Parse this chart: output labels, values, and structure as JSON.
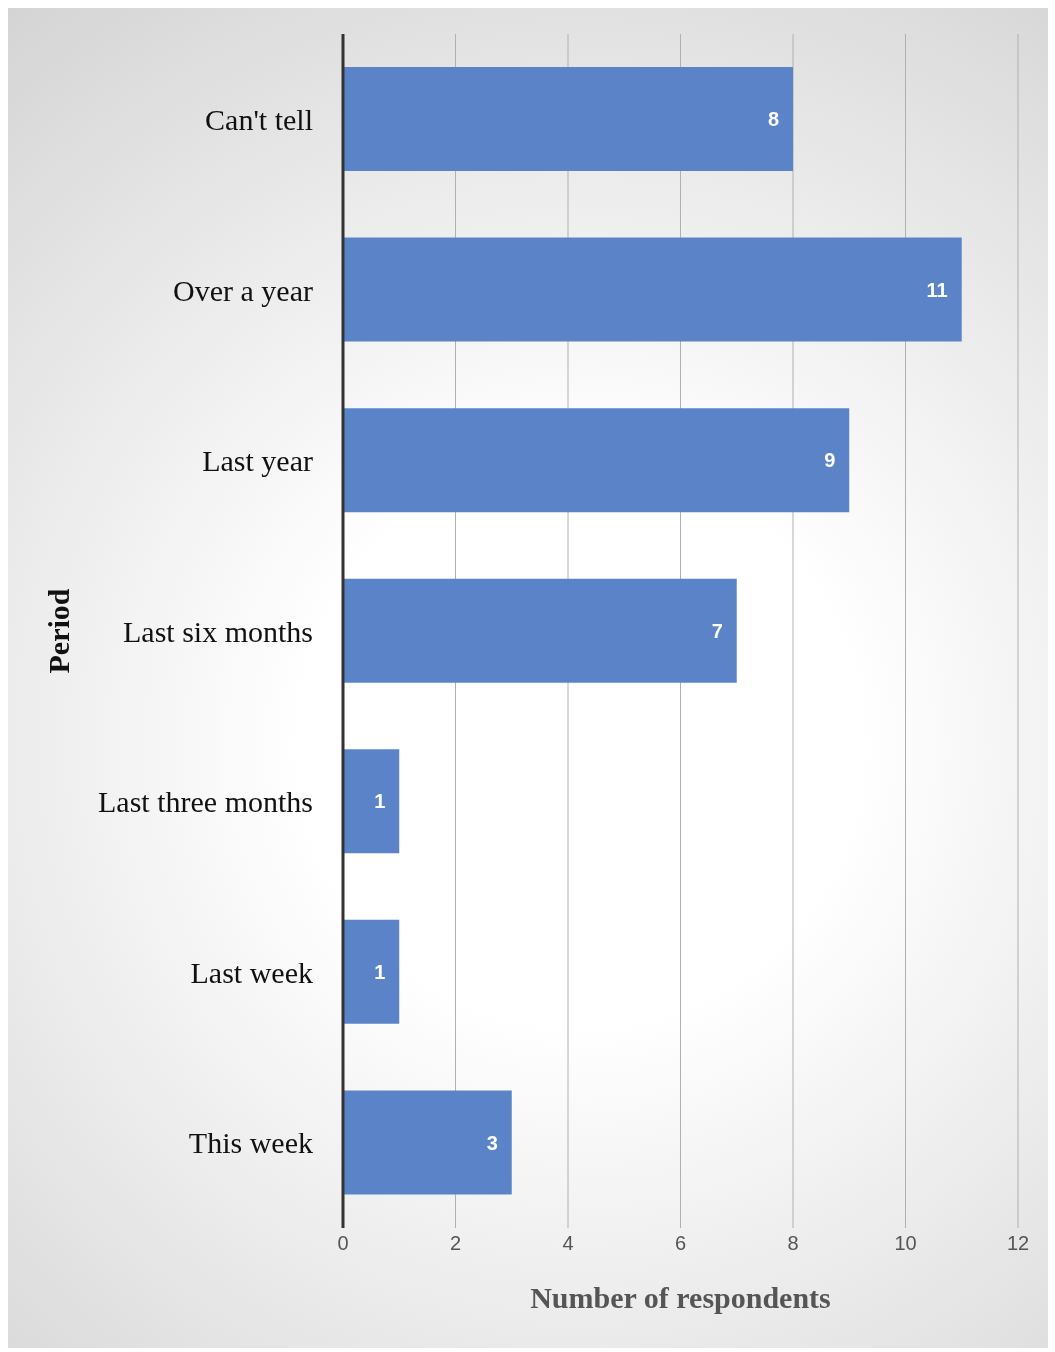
{
  "chart_data": {
    "type": "bar",
    "orientation": "horizontal",
    "categories": [
      "Can't tell",
      "Over a year",
      "Last year",
      "Last six months",
      "Last three months",
      "Last week",
      "This week"
    ],
    "values": [
      8,
      11,
      9,
      7,
      1,
      1,
      3
    ],
    "color": "#5b84c8",
    "xlabel": "Number of respondents",
    "ylabel": "Period",
    "xlim": [
      0,
      12
    ],
    "xticks": [
      0,
      2,
      4,
      6,
      8,
      10,
      12
    ],
    "grid": "x",
    "data_labels": true
  }
}
